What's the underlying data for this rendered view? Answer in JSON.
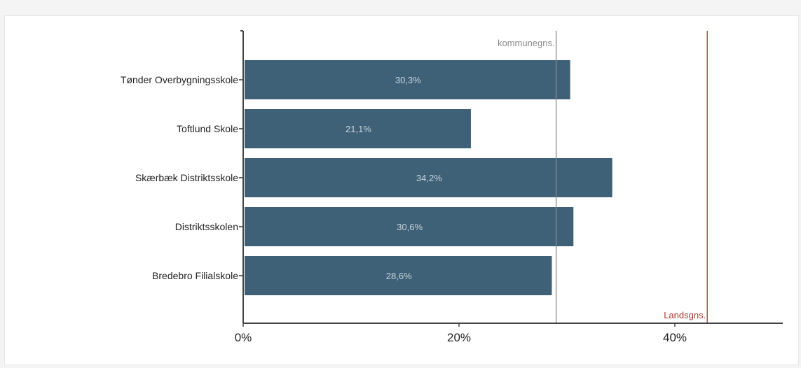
{
  "chart_data": {
    "type": "bar",
    "orientation": "horizontal",
    "categories": [
      "Tønder Overbygningsskole",
      "Toftlund Skole",
      "Skærbæk Distriktsskole",
      "Distriktsskolen",
      "Bredebro Filialskole"
    ],
    "values": [
      30.3,
      21.1,
      34.2,
      30.6,
      28.6
    ],
    "value_labels": [
      "30,3%",
      "21,1%",
      "34,2%",
      "30,6%",
      "28,6%"
    ],
    "xlim": [
      0,
      50
    ],
    "x_ticks": [
      0,
      20,
      40
    ],
    "x_tick_labels": [
      "0%",
      "20%",
      "40%"
    ],
    "reference_lines": [
      {
        "label": "kommunegns.",
        "value": 29,
        "color": "#888888"
      },
      {
        "label": "Landsgns.",
        "value": 43,
        "color": "#a33a2a"
      }
    ],
    "bar_color": "#3e6178",
    "grid": false
  }
}
